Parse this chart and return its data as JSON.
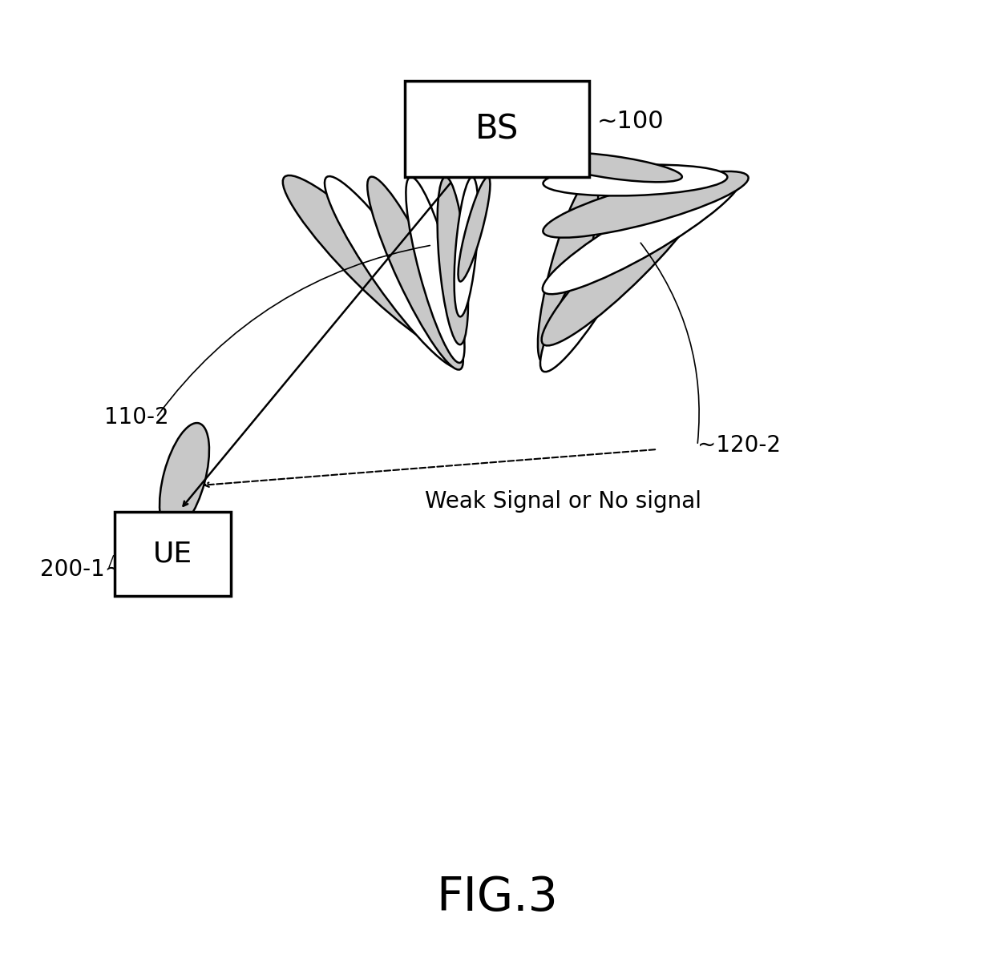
{
  "bg_color": "#ffffff",
  "fig_title": "FIG.3",
  "fig_title_fontsize": 42,
  "bs_label": "BS",
  "bs_label_fontsize": 30,
  "bs_ref": "~100",
  "bs_ref_fontsize": 22,
  "ue_label": "UE",
  "ue_label_fontsize": 26,
  "ue_ref": "200-1~",
  "ue_ref_fontsize": 20,
  "label_110_2": "110-2",
  "label_110_2_fontsize": 20,
  "label_120_2": "~120-2",
  "label_120_2_fontsize": 20,
  "weak_signal_label": "Weak Signal or No signal",
  "weak_signal_fontsize": 20,
  "dotted_fill_color": "#b8b8b8",
  "white_fill_color": "#ffffff",
  "edge_color": "#000000",
  "line_color": "#000000"
}
